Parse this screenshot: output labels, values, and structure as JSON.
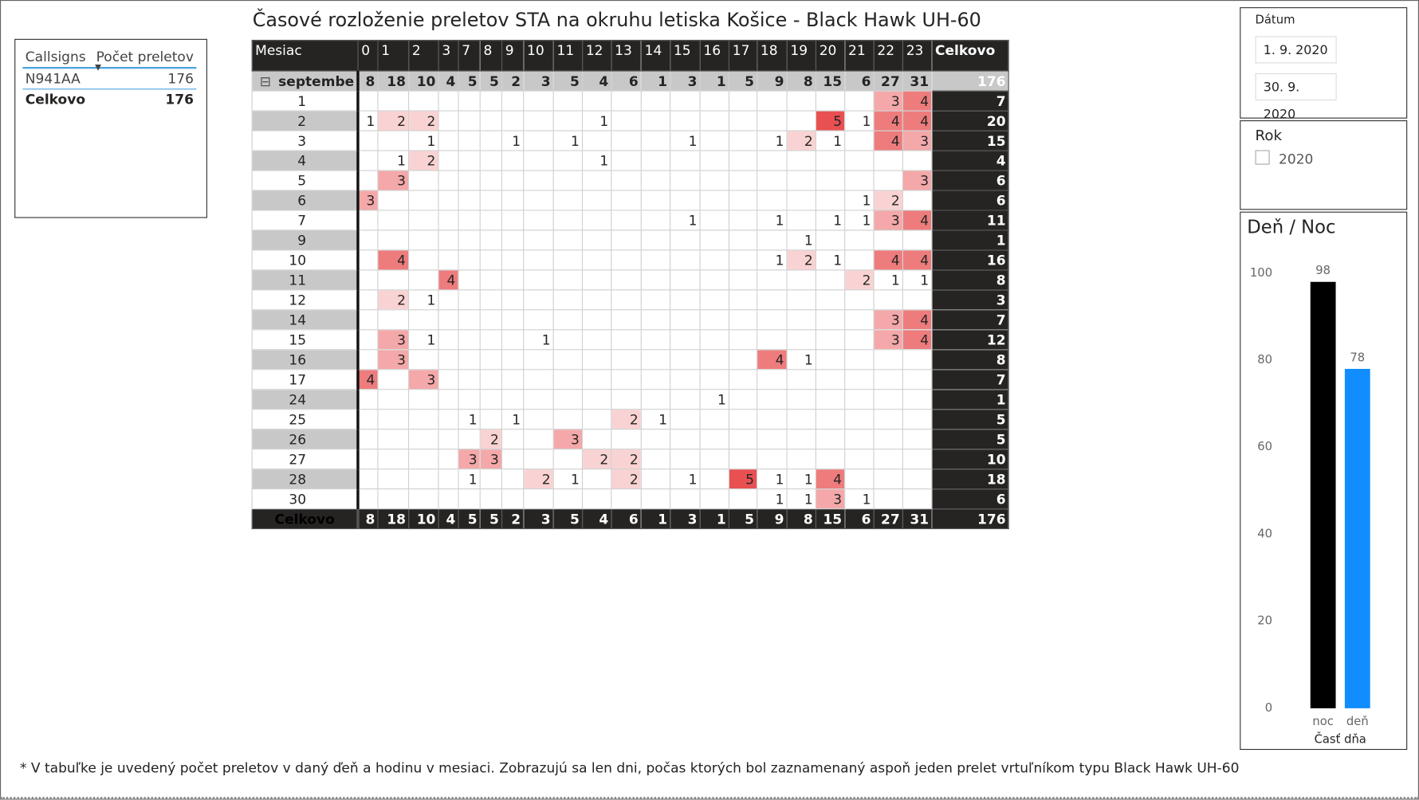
{
  "title": "Časové rozloženie preletov STA na okruhu letiska Košice - Black Hawk UH-60",
  "callsigns": {
    "headers": [
      "Callsigns",
      "Počet preletov"
    ],
    "rows": [
      [
        "N941AA",
        176
      ]
    ],
    "total": [
      "Celkovo",
      176
    ]
  },
  "matrix": {
    "row_header": "Mesiac",
    "total_header": "Celkovo",
    "columns": [
      0,
      1,
      2,
      3,
      7,
      8,
      9,
      10,
      11,
      12,
      13,
      14,
      15,
      16,
      17,
      18,
      19,
      20,
      21,
      22,
      23
    ],
    "group": {
      "label": "septembe",
      "values": [
        8,
        18,
        10,
        4,
        5,
        5,
        2,
        3,
        5,
        4,
        6,
        1,
        3,
        1,
        5,
        9,
        8,
        15,
        6,
        27,
        31
      ],
      "total": 176
    },
    "rows": [
      {
        "label": 1,
        "values": [
          null,
          null,
          null,
          null,
          null,
          null,
          null,
          null,
          null,
          null,
          null,
          null,
          null,
          null,
          null,
          null,
          null,
          null,
          null,
          3,
          4
        ],
        "total": 7
      },
      {
        "label": 2,
        "values": [
          1,
          2,
          2,
          null,
          null,
          null,
          null,
          null,
          null,
          1,
          null,
          null,
          null,
          null,
          null,
          null,
          null,
          5,
          1,
          4,
          4
        ],
        "total": 20
      },
      {
        "label": 3,
        "values": [
          null,
          null,
          1,
          null,
          null,
          null,
          1,
          null,
          1,
          null,
          null,
          null,
          1,
          null,
          null,
          1,
          2,
          1,
          null,
          4,
          3
        ],
        "total": 15
      },
      {
        "label": 4,
        "values": [
          null,
          1,
          2,
          null,
          null,
          null,
          null,
          null,
          null,
          1,
          null,
          null,
          null,
          null,
          null,
          null,
          null,
          null,
          null,
          null,
          null
        ],
        "total": 4
      },
      {
        "label": 5,
        "values": [
          null,
          3,
          null,
          null,
          null,
          null,
          null,
          null,
          null,
          null,
          null,
          null,
          null,
          null,
          null,
          null,
          null,
          null,
          null,
          null,
          3
        ],
        "total": 6
      },
      {
        "label": 6,
        "values": [
          3,
          null,
          null,
          null,
          null,
          null,
          null,
          null,
          null,
          null,
          null,
          null,
          null,
          null,
          null,
          null,
          null,
          null,
          1,
          2,
          null
        ],
        "total": 6
      },
      {
        "label": 7,
        "values": [
          null,
          null,
          null,
          null,
          null,
          null,
          null,
          null,
          null,
          null,
          null,
          null,
          1,
          null,
          null,
          1,
          null,
          1,
          1,
          3,
          4
        ],
        "total": 11
      },
      {
        "label": 9,
        "values": [
          null,
          null,
          null,
          null,
          null,
          null,
          null,
          null,
          null,
          null,
          null,
          null,
          null,
          null,
          null,
          null,
          1,
          null,
          null,
          null,
          null
        ],
        "total": 1
      },
      {
        "label": 10,
        "values": [
          null,
          4,
          null,
          null,
          null,
          null,
          null,
          null,
          null,
          null,
          null,
          null,
          null,
          null,
          null,
          1,
          2,
          1,
          null,
          4,
          4
        ],
        "total": 16
      },
      {
        "label": 11,
        "values": [
          null,
          null,
          null,
          4,
          null,
          null,
          null,
          null,
          null,
          null,
          null,
          null,
          null,
          null,
          null,
          null,
          null,
          null,
          2,
          1,
          1
        ],
        "total": 8
      },
      {
        "label": 12,
        "values": [
          null,
          2,
          1,
          null,
          null,
          null,
          null,
          null,
          null,
          null,
          null,
          null,
          null,
          null,
          null,
          null,
          null,
          null,
          null,
          null,
          null
        ],
        "total": 3
      },
      {
        "label": 14,
        "values": [
          null,
          null,
          null,
          null,
          null,
          null,
          null,
          null,
          null,
          null,
          null,
          null,
          null,
          null,
          null,
          null,
          null,
          null,
          null,
          3,
          4
        ],
        "total": 7
      },
      {
        "label": 15,
        "values": [
          null,
          3,
          1,
          null,
          null,
          null,
          null,
          1,
          null,
          null,
          null,
          null,
          null,
          null,
          null,
          null,
          null,
          null,
          null,
          3,
          4
        ],
        "total": 12
      },
      {
        "label": 16,
        "values": [
          null,
          3,
          null,
          null,
          null,
          null,
          null,
          null,
          null,
          null,
          null,
          null,
          null,
          null,
          null,
          4,
          1,
          null,
          null,
          null,
          null
        ],
        "total": 8
      },
      {
        "label": 17,
        "values": [
          4,
          null,
          3,
          null,
          null,
          null,
          null,
          null,
          null,
          null,
          null,
          null,
          null,
          null,
          null,
          null,
          null,
          null,
          null,
          null,
          null
        ],
        "total": 7
      },
      {
        "label": 24,
        "values": [
          null,
          null,
          null,
          null,
          null,
          null,
          null,
          null,
          null,
          null,
          null,
          null,
          null,
          1,
          null,
          null,
          null,
          null,
          null,
          null,
          null
        ],
        "total": 1
      },
      {
        "label": 25,
        "values": [
          null,
          null,
          null,
          null,
          1,
          null,
          1,
          null,
          null,
          null,
          2,
          1,
          null,
          null,
          null,
          null,
          null,
          null,
          null,
          null,
          null
        ],
        "total": 5
      },
      {
        "label": 26,
        "values": [
          null,
          null,
          null,
          null,
          null,
          2,
          null,
          null,
          3,
          null,
          null,
          null,
          null,
          null,
          null,
          null,
          null,
          null,
          null,
          null,
          null
        ],
        "total": 5
      },
      {
        "label": 27,
        "values": [
          null,
          null,
          null,
          null,
          3,
          3,
          null,
          null,
          null,
          2,
          2,
          null,
          null,
          null,
          null,
          null,
          null,
          null,
          null,
          null,
          null
        ],
        "total": 10
      },
      {
        "label": 28,
        "values": [
          null,
          null,
          null,
          null,
          1,
          null,
          null,
          2,
          1,
          null,
          2,
          null,
          1,
          null,
          5,
          1,
          1,
          4,
          null,
          null,
          null
        ],
        "total": 18
      },
      {
        "label": 30,
        "values": [
          null,
          null,
          null,
          null,
          null,
          null,
          null,
          null,
          null,
          null,
          null,
          null,
          null,
          null,
          null,
          1,
          1,
          3,
          1,
          null,
          null
        ],
        "total": 6
      }
    ],
    "total": {
      "label": "Celkovo",
      "values": [
        8,
        18,
        10,
        4,
        5,
        5,
        2,
        3,
        5,
        4,
        6,
        1,
        3,
        1,
        5,
        9,
        8,
        15,
        6,
        27,
        31
      ],
      "total": 176
    }
  },
  "date_slicer": {
    "title": "Dátum",
    "from": "1. 9. 2020",
    "to": "30. 9. 2020"
  },
  "year_slicer": {
    "title": "Rok",
    "options": [
      "2020"
    ]
  },
  "chart_data": {
    "type": "bar",
    "title": "Deň / Noc",
    "x_label": "Časť dňa",
    "categories": [
      "noc",
      "deň"
    ],
    "values": [
      98,
      78
    ],
    "colors": [
      "#000000",
      "#118dff"
    ],
    "ylim": [
      0,
      100
    ],
    "yticks": [
      0,
      20,
      40,
      60,
      80,
      100
    ],
    "grid": false,
    "value_labels_shown": true
  },
  "footnote": "* V tabuľke je uvedený počet preletov v daný ďeň a hodinu v mesiaci. Zobrazujú sa len dni, počas ktorých bol zaznamenaný aspoň jeden prelet vrtuľníkom typu Black Hawk UH-60"
}
